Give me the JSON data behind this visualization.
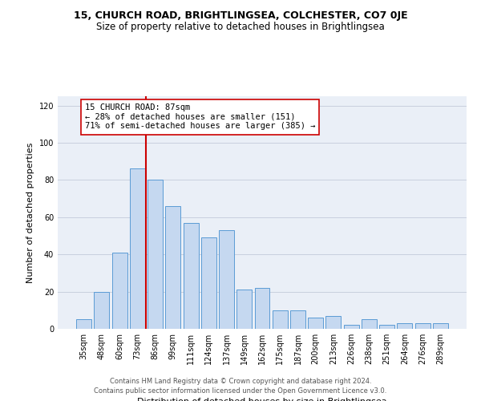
{
  "title1": "15, CHURCH ROAD, BRIGHTLINGSEA, COLCHESTER, CO7 0JE",
  "title2": "Size of property relative to detached houses in Brightlingsea",
  "xlabel": "Distribution of detached houses by size in Brightlingsea",
  "ylabel": "Number of detached properties",
  "footer1": "Contains HM Land Registry data © Crown copyright and database right 2024.",
  "footer2": "Contains public sector information licensed under the Open Government Licence v3.0.",
  "categories": [
    "35sqm",
    "48sqm",
    "60sqm",
    "73sqm",
    "86sqm",
    "99sqm",
    "111sqm",
    "124sqm",
    "137sqm",
    "149sqm",
    "162sqm",
    "175sqm",
    "187sqm",
    "200sqm",
    "213sqm",
    "226sqm",
    "238sqm",
    "251sqm",
    "264sqm",
    "276sqm",
    "289sqm"
  ],
  "values": [
    5,
    20,
    41,
    86,
    80,
    66,
    57,
    49,
    53,
    21,
    22,
    10,
    10,
    6,
    7,
    2,
    5,
    2,
    3,
    3,
    3
  ],
  "bar_color": "#c5d8f0",
  "bar_edge_color": "#5b9bd5",
  "bar_width": 0.85,
  "vline_x_index": 3.5,
  "vline_color": "#cc0000",
  "annotation_text": "15 CHURCH ROAD: 87sqm\n← 28% of detached houses are smaller (151)\n71% of semi-detached houses are larger (385) →",
  "annotation_box_color": "#ffffff",
  "annotation_box_edge": "#cc0000",
  "ylim": [
    0,
    125
  ],
  "yticks": [
    0,
    20,
    40,
    60,
    80,
    100,
    120
  ],
  "grid_color": "#c8d0de",
  "background_color": "#eaeff7",
  "fig_bg_color": "#ffffff"
}
